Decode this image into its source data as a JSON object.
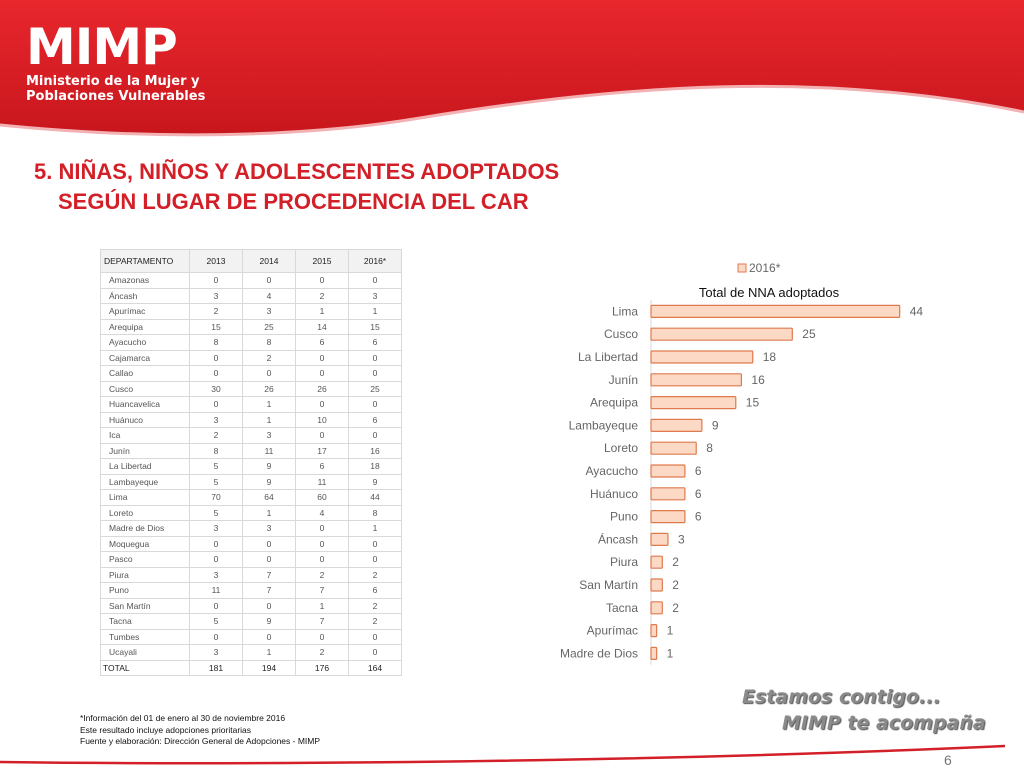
{
  "logo": {
    "name": "MIMP",
    "line1": "Ministerio de la Mujer y",
    "line2": "Poblaciones Vulnerables"
  },
  "title": {
    "line1": "5. NIÑAS, NIÑOS Y ADOLESCENTES ADOPTADOS",
    "line2": "SEGÚN LUGAR DE PROCEDENCIA DEL CAR"
  },
  "table": {
    "headers": [
      "DEPARTAMENTO",
      "2013",
      "2014",
      "2015",
      "2016*"
    ],
    "rows": [
      [
        "Amazonas",
        "0",
        "0",
        "0",
        "0"
      ],
      [
        "Áncash",
        "3",
        "4",
        "2",
        "3"
      ],
      [
        "Apurímac",
        "2",
        "3",
        "1",
        "1"
      ],
      [
        "Arequipa",
        "15",
        "25",
        "14",
        "15"
      ],
      [
        "Ayacucho",
        "8",
        "8",
        "6",
        "6"
      ],
      [
        "Cajamarca",
        "0",
        "2",
        "0",
        "0"
      ],
      [
        "Callao",
        "0",
        "0",
        "0",
        "0"
      ],
      [
        "Cusco",
        "30",
        "26",
        "26",
        "25"
      ],
      [
        "Huancavelica",
        "0",
        "1",
        "0",
        "0"
      ],
      [
        "Huánuco",
        "3",
        "1",
        "10",
        "6"
      ],
      [
        "Ica",
        "2",
        "3",
        "0",
        "0"
      ],
      [
        "Junín",
        "8",
        "11",
        "17",
        "16"
      ],
      [
        "La Libertad",
        "5",
        "9",
        "6",
        "18"
      ],
      [
        "Lambayeque",
        "5",
        "9",
        "11",
        "9"
      ],
      [
        "Lima",
        "70",
        "64",
        "60",
        "44"
      ],
      [
        "Loreto",
        "5",
        "1",
        "4",
        "8"
      ],
      [
        "Madre de Dios",
        "3",
        "3",
        "0",
        "1"
      ],
      [
        "Moquegua",
        "0",
        "0",
        "0",
        "0"
      ],
      [
        "Pasco",
        "0",
        "0",
        "0",
        "0"
      ],
      [
        "Piura",
        "3",
        "7",
        "2",
        "2"
      ],
      [
        "Puno",
        "11",
        "7",
        "7",
        "6"
      ],
      [
        "San Martín",
        "0",
        "0",
        "1",
        "2"
      ],
      [
        "Tacna",
        "5",
        "9",
        "7",
        "2"
      ],
      [
        "Tumbes",
        "0",
        "0",
        "0",
        "0"
      ],
      [
        "Ucayali",
        "3",
        "1",
        "2",
        "0"
      ]
    ],
    "total": [
      "TOTAL",
      "181",
      "194",
      "176",
      "164"
    ]
  },
  "chart_data": {
    "type": "bar",
    "orientation": "horizontal",
    "title": "Total de NNA adoptados",
    "legend": {
      "label": "2016*",
      "placement": "top"
    },
    "categories": [
      "Lima",
      "Cusco",
      "La Libertad",
      "Junín",
      "Arequipa",
      "Lambayeque",
      "Loreto",
      "Ayacucho",
      "Huánuco",
      "Puno",
      "Áncash",
      "Piura",
      "San Martín",
      "Tacna",
      "Apurímac",
      "Madre de Dios"
    ],
    "series": [
      {
        "name": "2016*",
        "values": [
          44,
          25,
          18,
          16,
          15,
          9,
          8,
          6,
          6,
          6,
          3,
          2,
          2,
          2,
          1,
          1
        ]
      }
    ],
    "xlim": [
      0,
      46
    ],
    "grid": false,
    "colors": {
      "fill": "#fbd9c4",
      "stroke": "#e07a4e"
    }
  },
  "notes": [
    "*Información del 01 de enero al 30 de noviembre 2016",
    "Este resultado incluye adopciones prioritarias",
    "Fuente y elaboración: Dirección General de Adopciones - MIMP"
  ],
  "slogan": {
    "line1": "Estamos contigo...",
    "line2": "MIMP te acompaña"
  },
  "page_number": "6",
  "colors": {
    "brand_red": "#d31f27",
    "header_red": "#e02329"
  }
}
